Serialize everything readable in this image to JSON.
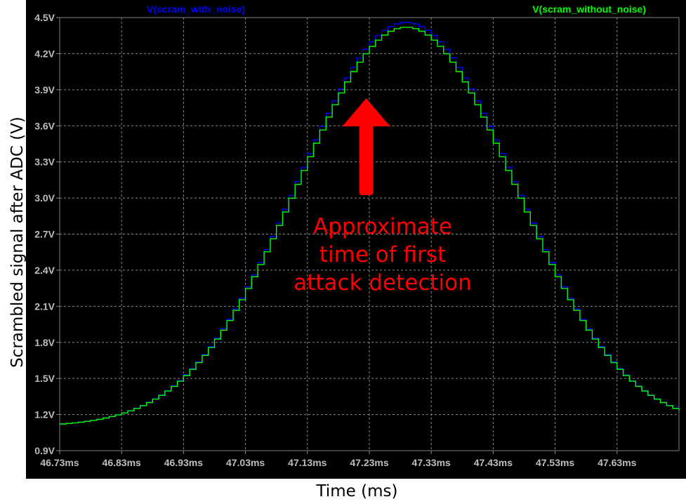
{
  "chart_data": {
    "type": "line",
    "xlabel": "Time (ms)",
    "ylabel": "Scrambled signal after ADC (V)",
    "x_ticks": [
      "46.73ms",
      "46.83ms",
      "46.93ms",
      "47.03ms",
      "47.13ms",
      "47.23ms",
      "47.33ms",
      "47.43ms",
      "47.53ms",
      "47.63ms"
    ],
    "y_ticks": [
      "0.9V",
      "1.2V",
      "1.5V",
      "1.8V",
      "2.1V",
      "2.4V",
      "2.7V",
      "3.0V",
      "3.3V",
      "3.6V",
      "3.9V",
      "4.2V",
      "4.5V"
    ],
    "xlim": [
      46.73,
      47.73
    ],
    "ylim": [
      0.9,
      4.5
    ],
    "grid": true,
    "background": "#000000",
    "series": [
      {
        "name": "V(scram_with_noise)",
        "color": "#0000ff",
        "peak_x": 47.285,
        "peak_y": 4.46,
        "x": [
          46.73,
          46.75,
          46.8,
          46.85,
          46.9,
          46.95,
          47.0,
          47.05,
          47.1,
          47.15,
          47.2,
          47.25,
          47.285,
          47.32,
          47.35,
          47.4,
          47.45,
          47.5,
          47.55,
          47.6,
          47.65,
          47.7,
          47.73
        ],
        "y": [
          1.12,
          1.1,
          1.13,
          1.19,
          1.32,
          1.51,
          1.79,
          2.21,
          2.78,
          3.43,
          4.0,
          4.38,
          4.46,
          4.4,
          4.2,
          3.61,
          2.88,
          2.19,
          1.66,
          1.35,
          1.18,
          1.13,
          1.14
        ]
      },
      {
        "name": "V(scram_without_noise)",
        "color": "#00ff00",
        "peak_x": 47.285,
        "peak_y": 4.42,
        "x": [
          46.73,
          46.75,
          46.8,
          46.85,
          46.9,
          46.95,
          47.0,
          47.05,
          47.1,
          47.15,
          47.2,
          47.25,
          47.285,
          47.32,
          47.35,
          47.4,
          47.45,
          47.5,
          47.55,
          47.6,
          47.65,
          47.7,
          47.73
        ],
        "y": [
          1.12,
          1.11,
          1.12,
          1.17,
          1.3,
          1.49,
          1.76,
          2.18,
          2.74,
          3.38,
          3.95,
          4.33,
          4.42,
          4.35,
          4.15,
          3.57,
          2.85,
          2.16,
          1.64,
          1.33,
          1.17,
          1.13,
          1.13
        ]
      }
    ],
    "annotation": {
      "lines": [
        "Approximate",
        "time of first",
        "attack detection"
      ],
      "color": "#ff0000",
      "arrow_x": 47.225
    }
  }
}
